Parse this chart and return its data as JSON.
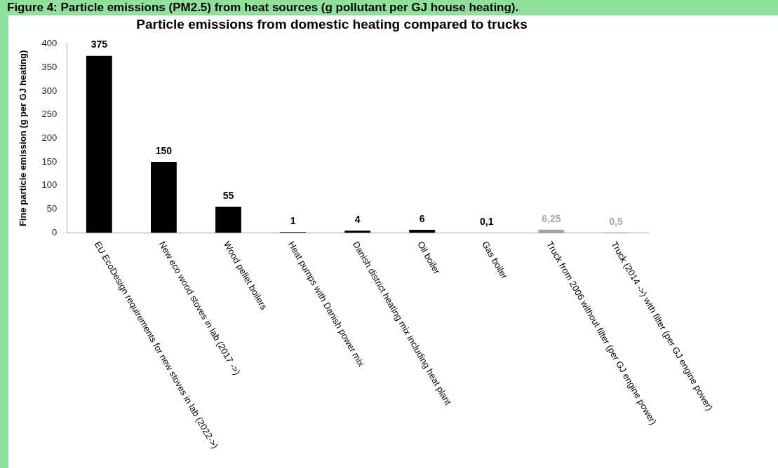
{
  "chart_data": {
    "type": "bar",
    "title": "Figure 4: Particle emissions (PM2.5) from heat sources (g pollutant per GJ house heating).",
    "subtitle": "Particle emissions from domestic heating compared to trucks",
    "ylabel": "Fine particle emission (g per GJ heating)",
    "categories": [
      "EU EcoDesign requirements for new stoves in lab (2022->)",
      "New eco wood stoves in lab (2017 ->)",
      "Wood pellet boilers",
      "Heat pumps with Danish power mix",
      "Danish district heating mix including heat plant",
      "Oil boiler",
      "Gas boiler",
      "Truck from 2006 without filter (per GJ engine power)",
      "Truck (2014 ->) with filter (per GJ engine power)"
    ],
    "values": [
      375,
      150,
      55,
      1,
      4,
      6,
      0.1,
      6.25,
      0.5
    ],
    "value_labels": [
      "375",
      "150",
      "55",
      "1",
      "4",
      "6",
      "0,1",
      "6,25",
      "0,5"
    ],
    "colors": [
      "#000000",
      "#000000",
      "#000000",
      "#000000",
      "#000000",
      "#000000",
      "#000000",
      "#a6a6a6",
      "#a6a6a6"
    ],
    "ylim": [
      0,
      400
    ],
    "yticks": [
      0,
      50,
      100,
      150,
      200,
      250,
      300,
      350,
      400
    ],
    "grid": false,
    "legend": false
  }
}
